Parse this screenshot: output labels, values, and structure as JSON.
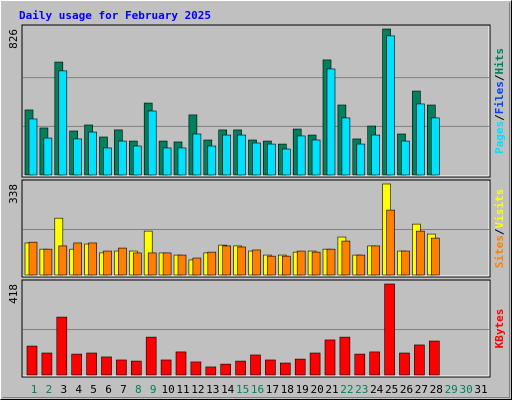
{
  "chart_data": [
    {
      "type": "bar",
      "title": "Daily usage for February 2025",
      "ylim": [
        0,
        826
      ],
      "yticks": [
        826
      ],
      "legend_separator": "/",
      "series": [
        {
          "name": "Hits",
          "color": "#00805c",
          "values": [
            368,
            266,
            639,
            249,
            283,
            215,
            255,
            192,
            407,
            192,
            187,
            340,
            198,
            255,
            255,
            198,
            192,
            175,
            260,
            226,
            651,
            396,
            204,
            277,
            826,
            232,
            475,
            396,
            null,
            null,
            null
          ]
        },
        {
          "name": "Files",
          "color": "#0040ff",
          "values": [
            null,
            null,
            null,
            null,
            null,
            null,
            null,
            null,
            null,
            null,
            null,
            null,
            null,
            null,
            null,
            null,
            null,
            null,
            null,
            null,
            null,
            null,
            null,
            null,
            null,
            null,
            null,
            null,
            null,
            null,
            null
          ]
        },
        {
          "name": "Pages",
          "color": "#00e0ff",
          "values": [
            317,
            209,
            589,
            204,
            243,
            153,
            192,
            164,
            362,
            153,
            153,
            232,
            164,
            226,
            226,
            181,
            175,
            147,
            221,
            198,
            600,
            323,
            175,
            226,
            787,
            192,
            402,
            323,
            null,
            null,
            null
          ]
        }
      ]
    },
    {
      "type": "bar",
      "ylim": [
        0,
        338
      ],
      "yticks": [
        338
      ],
      "legend_separator": "/",
      "series": [
        {
          "name": "Visits",
          "color": "#ffff00",
          "values": [
            119,
            96,
            211,
            96,
            115,
            82,
            89,
            89,
            163,
            82,
            74,
            56,
            82,
            111,
            108,
            89,
            74,
            74,
            85,
            89,
            96,
            141,
            74,
            108,
            338,
            89,
            189,
            152,
            null,
            null,
            null
          ]
        },
        {
          "name": "Sites",
          "color": "#ff8000",
          "values": [
            122,
            96,
            108,
            119,
            119,
            89,
            100,
            82,
            82,
            82,
            74,
            63,
            85,
            108,
            104,
            93,
            70,
            70,
            89,
            85,
            96,
            126,
            74,
            108,
            241,
            89,
            163,
            137,
            null,
            null,
            null
          ]
        }
      ]
    },
    {
      "type": "bar",
      "ylim": [
        0,
        418
      ],
      "yticks": [
        418
      ],
      "categories": [
        "1",
        "2",
        "3",
        "4",
        "5",
        "6",
        "7",
        "8",
        "9",
        "10",
        "11",
        "12",
        "13",
        "14",
        "15",
        "16",
        "17",
        "18",
        "19",
        "20",
        "21",
        "22",
        "23",
        "24",
        "25",
        "26",
        "27",
        "28",
        "29",
        "30",
        "31"
      ],
      "label_colors": [
        "#00805c",
        "#00805c",
        "#000000",
        "#000000",
        "#000000",
        "#000000",
        "#000000",
        "#00805c",
        "#00805c",
        "#000000",
        "#000000",
        "#000000",
        "#000000",
        "#000000",
        "#00805c",
        "#00805c",
        "#000000",
        "#000000",
        "#000000",
        "#000000",
        "#000000",
        "#00805c",
        "#00805c",
        "#000000",
        "#000000",
        "#000000",
        "#000000",
        "#000000",
        "#00805c",
        "#00805c",
        "#000000"
      ],
      "series": [
        {
          "name": "KBytes",
          "color": "#ff0000",
          "values": [
            133,
            101,
            266,
            96,
            101,
            83,
            69,
            64,
            174,
            69,
            106,
            60,
            37,
            50,
            64,
            92,
            69,
            55,
            73,
            101,
            161,
            174,
            96,
            106,
            418,
            101,
            138,
            156,
            null,
            null,
            null
          ]
        }
      ]
    }
  ]
}
